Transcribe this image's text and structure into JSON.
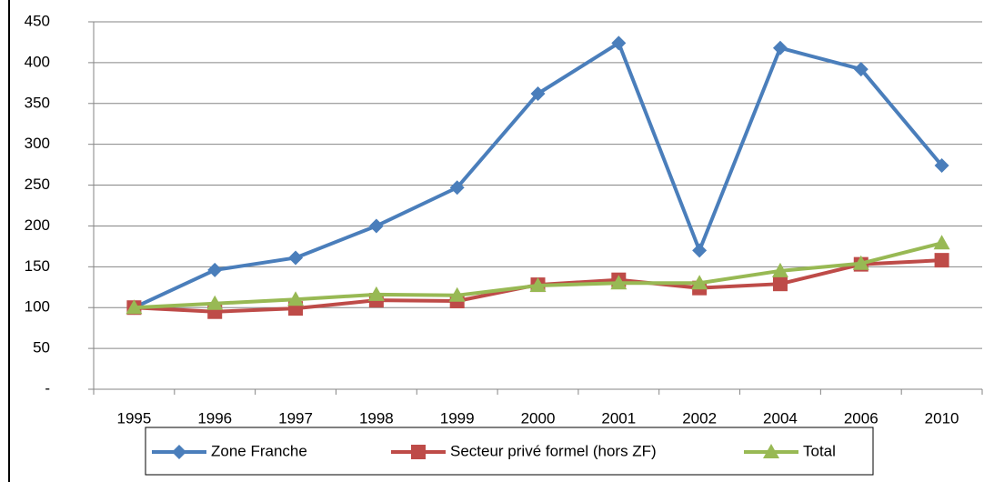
{
  "chart_data": {
    "type": "line",
    "categories": [
      "1995",
      "1996",
      "1997",
      "1998",
      "1999",
      "2000",
      "2001",
      "2002",
      "2004",
      "2006",
      "2010"
    ],
    "series": [
      {
        "name": "Zone Franche",
        "color": "#4a7ebb",
        "marker": "diamond",
        "values": [
          100,
          146,
          161,
          200,
          247,
          362,
          424,
          170,
          418,
          392,
          274
        ]
      },
      {
        "name": "Secteur privé formel (hors ZF)",
        "color": "#be4b48",
        "marker": "square",
        "values": [
          100,
          95,
          99,
          109,
          108,
          128,
          134,
          124,
          129,
          153,
          158
        ]
      },
      {
        "name": "Total",
        "color": "#98b954",
        "marker": "triangle",
        "values": [
          100,
          105,
          110,
          116,
          115,
          127,
          130,
          130,
          145,
          154,
          179
        ]
      }
    ],
    "ylim": [
      0,
      450
    ],
    "yticks": [
      {
        "value": 0,
        "label": "-"
      },
      50,
      100,
      150,
      200,
      250,
      300,
      350,
      400,
      450
    ],
    "grid": true,
    "legend": "bottom"
  }
}
